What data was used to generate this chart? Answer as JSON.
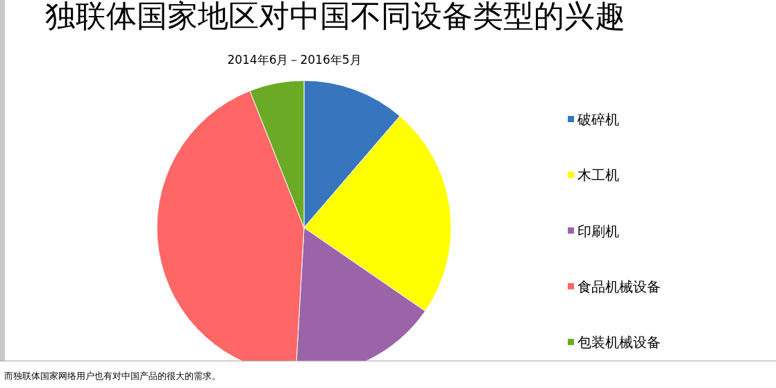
{
  "chart_data": {
    "type": "pie",
    "title": "独联体国家地区对中国不同设备类型的兴趣",
    "subtitle": "2014年6月－2016年5月",
    "categories": [
      "破碎机",
      "木工机",
      "印刷机",
      "食品机械设备",
      "包装机械设备"
    ],
    "values": [
      11.3,
      23.3,
      16.3,
      43.1,
      6.0
    ],
    "colors": [
      "#3775bf",
      "#ffff00",
      "#9c64a8",
      "#ff6666",
      "#6aaa24"
    ],
    "legend": "right",
    "annotations": [
      "而独联体国家网络用户也有对中国产品的很大的需求。"
    ]
  }
}
